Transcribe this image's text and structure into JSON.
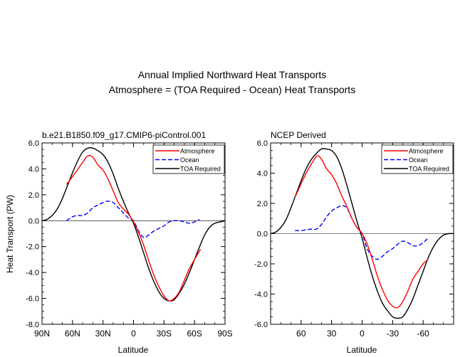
{
  "figure": {
    "title_line1": "Annual Implied Northward Heat Transports",
    "title_line2": "Atmosphere = (TOA Required - Ocean) Heat Transports"
  },
  "chart_data": [
    {
      "type": "line",
      "title": "b.e21.B1850.f09_g17.CMIP6-piControl.001",
      "xlabel": "Latitude",
      "ylabel": "Heat Transport (PW)",
      "xlim": [
        90,
        -90
      ],
      "ylim": [
        -8.0,
        6.0
      ],
      "x_ticks": [
        90,
        60,
        30,
        0,
        -30,
        -60,
        -90
      ],
      "x_tick_labels": [
        "90N",
        "60N",
        "30N",
        "0",
        "30S",
        "60S",
        "90S"
      ],
      "y_ticks": [
        6.0,
        4.0,
        2.0,
        0.0,
        -2.0,
        -4.0,
        -6.0,
        -8.0
      ],
      "y_tick_labels": [
        "6.0",
        "4.0",
        "2.0",
        "0.0",
        "-2.0",
        "-4.0",
        "-6.0",
        "-8.0"
      ],
      "grid": false,
      "zero_line": true,
      "legend": "top-right",
      "series": [
        {
          "name": "Atmosphere",
          "color": "#ff0000",
          "style": "solid",
          "x": [
            66,
            60,
            50,
            45,
            40,
            35,
            30,
            25,
            20,
            15,
            10,
            5,
            0,
            -5,
            -10,
            -15,
            -20,
            -25,
            -30,
            -35,
            -40,
            -45,
            -50,
            -55,
            -60,
            -66
          ],
          "y": [
            2.8,
            3.4,
            4.5,
            5.0,
            4.9,
            4.3,
            3.9,
            3.2,
            2.3,
            1.4,
            0.9,
            0.5,
            -0.1,
            -0.9,
            -1.9,
            -3.1,
            -4.2,
            -5.1,
            -5.8,
            -6.2,
            -6.0,
            -5.5,
            -4.6,
            -3.7,
            -3.0,
            -2.2
          ]
        },
        {
          "name": "Ocean",
          "color": "#0000ff",
          "style": "dashed",
          "x": [
            66,
            60,
            55,
            50,
            45,
            40,
            35,
            30,
            25,
            20,
            15,
            10,
            5,
            0,
            -5,
            -10,
            -15,
            -20,
            -25,
            -30,
            -35,
            -40,
            -45,
            -50,
            -55,
            -60,
            -65
          ],
          "y": [
            0.0,
            0.3,
            0.4,
            0.4,
            0.6,
            1.0,
            1.2,
            1.4,
            1.5,
            1.4,
            1.0,
            0.6,
            0.2,
            0.0,
            -0.8,
            -1.3,
            -1.1,
            -0.8,
            -0.6,
            -0.4,
            -0.1,
            0.0,
            0.0,
            -0.1,
            -0.2,
            -0.1,
            0.1
          ]
        },
        {
          "name": "TOA Required",
          "color": "#000000",
          "style": "solid",
          "x": [
            90,
            85,
            80,
            75,
            70,
            65,
            60,
            55,
            50,
            45,
            40,
            35,
            30,
            25,
            20,
            15,
            10,
            5,
            0,
            -5,
            -10,
            -15,
            -20,
            -25,
            -30,
            -35,
            -40,
            -45,
            -50,
            -55,
            -60,
            -65,
            -70,
            -75,
            -80,
            -85,
            -90
          ],
          "y": [
            0.0,
            0.1,
            0.4,
            0.9,
            1.7,
            2.7,
            3.7,
            4.6,
            5.3,
            5.6,
            5.6,
            5.4,
            5.1,
            4.5,
            3.6,
            2.5,
            1.5,
            0.6,
            -0.2,
            -1.3,
            -2.5,
            -3.7,
            -4.7,
            -5.5,
            -6.0,
            -6.2,
            -6.1,
            -5.6,
            -4.9,
            -4.0,
            -3.0,
            -2.0,
            -1.1,
            -0.5,
            -0.2,
            -0.1,
            0.0
          ]
        }
      ]
    },
    {
      "type": "line",
      "title": "NCEP Derived",
      "xlabel": "Latitude",
      "ylabel": "",
      "xlim": [
        90,
        -90
      ],
      "ylim": [
        -6.0,
        6.0
      ],
      "x_ticks": [
        60,
        30,
        0,
        -30,
        -60
      ],
      "x_tick_labels": [
        "60",
        "30",
        "0",
        "-30",
        "-60"
      ],
      "y_ticks": [
        6.0,
        4.0,
        2.0,
        0.0,
        -2.0,
        -4.0,
        -6.0
      ],
      "y_tick_labels": [
        "6.0",
        "4.0",
        "2.0",
        "0.0",
        "-2.0",
        "-4.0",
        "-6.0"
      ],
      "grid": false,
      "zero_line": true,
      "legend": "top-right",
      "series": [
        {
          "name": "Atmosphere",
          "color": "#ff0000",
          "style": "solid",
          "x": [
            66,
            60,
            55,
            50,
            45,
            42,
            38,
            35,
            30,
            25,
            20,
            15,
            10,
            5,
            0,
            -5,
            -10,
            -15,
            -20,
            -25,
            -30,
            -35,
            -40,
            -45,
            -50,
            -55,
            -60,
            -65
          ],
          "y": [
            2.4,
            3.3,
            4.0,
            4.6,
            5.1,
            5.1,
            4.7,
            4.3,
            3.9,
            3.3,
            2.5,
            1.8,
            1.0,
            0.4,
            0.0,
            -0.7,
            -1.7,
            -2.8,
            -3.7,
            -4.4,
            -4.8,
            -4.9,
            -4.5,
            -3.8,
            -3.0,
            -2.5,
            -2.0,
            -1.7
          ]
        },
        {
          "name": "Ocean",
          "color": "#0000ff",
          "style": "dashed",
          "x": [
            66,
            60,
            55,
            50,
            45,
            40,
            35,
            30,
            25,
            20,
            15,
            10,
            5,
            0,
            -5,
            -10,
            -15,
            -20,
            -25,
            -30,
            -35,
            -40,
            -45,
            -50,
            -55,
            -60,
            -65
          ],
          "y": [
            0.2,
            0.2,
            0.25,
            0.3,
            0.3,
            0.6,
            1.1,
            1.5,
            1.7,
            1.85,
            1.7,
            1.0,
            0.4,
            0.0,
            -1.0,
            -1.5,
            -1.7,
            -1.5,
            -1.2,
            -1.0,
            -0.7,
            -0.5,
            -0.6,
            -0.8,
            -0.8,
            -0.6,
            -0.3
          ]
        },
        {
          "name": "TOA Required",
          "color": "#000000",
          "style": "solid",
          "x": [
            90,
            85,
            80,
            75,
            70,
            65,
            60,
            55,
            50,
            45,
            40,
            35,
            30,
            25,
            20,
            15,
            10,
            5,
            0,
            -5,
            -10,
            -15,
            -20,
            -25,
            -30,
            -35,
            -40,
            -45,
            -50,
            -55,
            -60,
            -65,
            -70,
            -75,
            -80,
            -85,
            -90
          ],
          "y": [
            0.0,
            0.1,
            0.4,
            0.9,
            1.7,
            2.6,
            3.5,
            4.3,
            4.9,
            5.3,
            5.6,
            5.6,
            5.5,
            5.1,
            4.3,
            3.2,
            2.0,
            0.8,
            -0.3,
            -1.6,
            -2.8,
            -3.8,
            -4.6,
            -5.1,
            -5.5,
            -5.6,
            -5.5,
            -5.0,
            -4.3,
            -3.4,
            -2.5,
            -1.6,
            -0.9,
            -0.4,
            -0.1,
            0.0,
            0.0
          ]
        }
      ]
    }
  ]
}
